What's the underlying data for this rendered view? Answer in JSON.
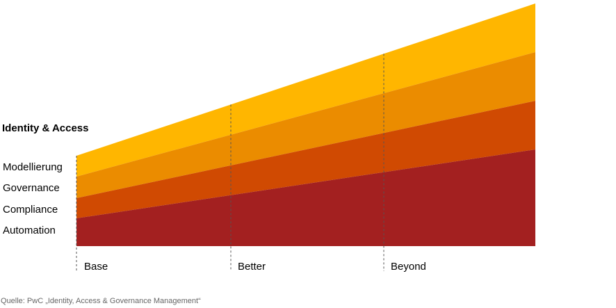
{
  "heading": "Identity & Access",
  "layers": [
    {
      "label": "Modellierung",
      "color": "#FFB600"
    },
    {
      "label": "Governance",
      "color": "#EB8C00"
    },
    {
      "label": "Compliance",
      "color": "#D04A02"
    },
    {
      "label": "Automation",
      "color": "#A32020"
    }
  ],
  "stages": [
    "Base",
    "Better",
    "Beyond"
  ],
  "source": "Quelle: PwC „Identity, Access & Governance Management“",
  "divider_color": "#555555"
}
